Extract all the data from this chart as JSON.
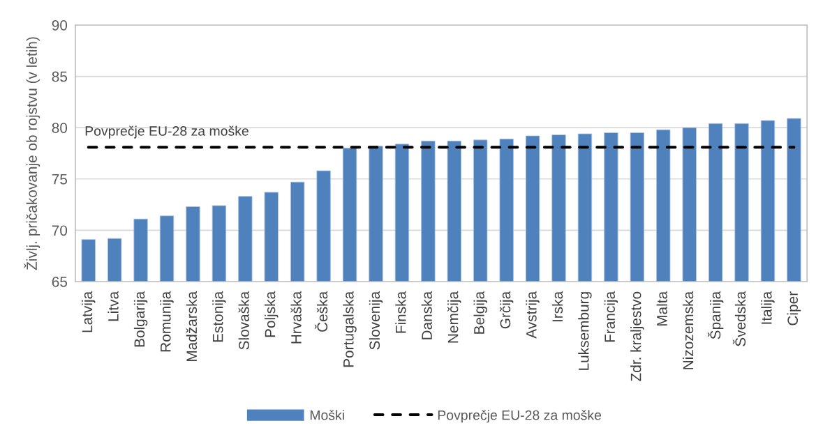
{
  "chart_data": {
    "type": "bar",
    "ylabel": "Življ. pričakovanje ob rojstvu (v letih)",
    "categories": [
      "Latvija",
      "Litva",
      "Bolgarija",
      "Romunija",
      "Madžarska",
      "Estonija",
      "Slovaška",
      "Poljska",
      "Hrvaška",
      "Češka",
      "Portugalska",
      "Slovenija",
      "Finska",
      "Danska",
      "Nemčija",
      "Belgija",
      "Grčija",
      "Avstrija",
      "Irska",
      "Luksemburg",
      "Francija",
      "Zdr. kraljestvo",
      "Malta",
      "Nizozemska",
      "Španija",
      "Švedska",
      "Italija",
      "Ciper"
    ],
    "series": [
      {
        "name": "Moški",
        "color": "#4f81bd",
        "values": [
          69.1,
          69.2,
          71.1,
          71.4,
          72.3,
          72.4,
          73.3,
          73.7,
          74.7,
          75.8,
          78.0,
          78.2,
          78.4,
          78.7,
          78.7,
          78.8,
          78.9,
          79.2,
          79.3,
          79.4,
          79.5,
          79.5,
          79.8,
          80.0,
          80.4,
          80.4,
          80.7,
          80.9
        ]
      },
      {
        "name": "Povprečje EU-28 za moške",
        "type": "line",
        "color": "#000000",
        "line_style": "dashed",
        "values": [
          78.1,
          78.1,
          78.1,
          78.1,
          78.1,
          78.1,
          78.1,
          78.1,
          78.1,
          78.1,
          78.1,
          78.1,
          78.1,
          78.1,
          78.1,
          78.1,
          78.1,
          78.1,
          78.1,
          78.1,
          78.1,
          78.1,
          78.1,
          78.1,
          78.1,
          78.1,
          78.1,
          78.1
        ]
      }
    ],
    "annotations": [
      {
        "text": "Povprečje EU-28 za moške",
        "x": "Latvija",
        "y": 78.1
      }
    ],
    "ylim": [
      65,
      90
    ],
    "yticks": [
      65,
      70,
      75,
      80,
      85,
      90
    ],
    "grid": "y",
    "legend": "bottom"
  }
}
